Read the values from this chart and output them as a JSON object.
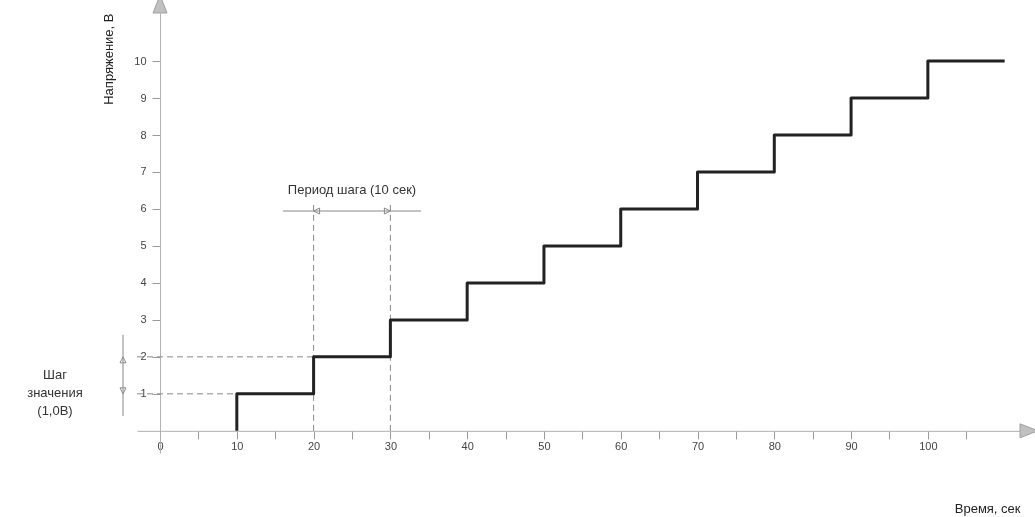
{
  "chart_data": {
    "type": "step",
    "xlabel": "Время, сек",
    "ylabel": "Напряжение, В",
    "x": [
      10,
      10,
      20,
      30,
      40,
      50,
      60,
      70,
      80,
      90,
      100,
      110
    ],
    "series": [
      {
        "color": "#222222",
        "values": [
          0,
          1,
          2,
          3,
          4,
          5,
          6,
          7,
          8,
          9,
          10,
          10
        ]
      }
    ],
    "xlim": [
      -3,
      112
    ],
    "ylim": [
      -0.6,
      11.3
    ],
    "xticks": [
      0,
      {
        "value": 5,
        "label": null
      },
      10,
      {
        "value": 15,
        "label": null
      },
      20,
      {
        "value": 25,
        "label": null
      },
      30,
      {
        "value": 35,
        "label": null
      },
      40,
      {
        "value": 45,
        "label": null
      },
      50,
      {
        "value": 55,
        "label": null
      },
      60,
      {
        "value": 65,
        "label": null
      },
      70,
      {
        "value": 75,
        "label": null
      },
      80,
      {
        "value": 85,
        "label": null
      },
      90,
      {
        "value": 95,
        "label": null
      },
      100,
      {
        "value": 105,
        "label": null
      }
    ],
    "yticks": [
      1,
      2,
      3,
      4,
      5,
      6,
      7,
      8,
      9,
      10
    ],
    "ref_lines": [
      {
        "axis": "x",
        "value": 20,
        "color": "#888888",
        "line_style": "dashed"
      },
      {
        "axis": "x",
        "value": 30,
        "color": "#888888",
        "line_style": "dashed"
      },
      {
        "axis": "y",
        "value": 1,
        "color": "#888888",
        "line_style": "dashed"
      },
      {
        "axis": "y",
        "value": 2,
        "color": "#888888",
        "line_style": "dashed"
      }
    ],
    "annotations": [
      "Период шага (10 сек)",
      "Шаг значения (1,0В)"
    ],
    "grid": false,
    "marker": "none",
    "line_style": "solid"
  }
}
